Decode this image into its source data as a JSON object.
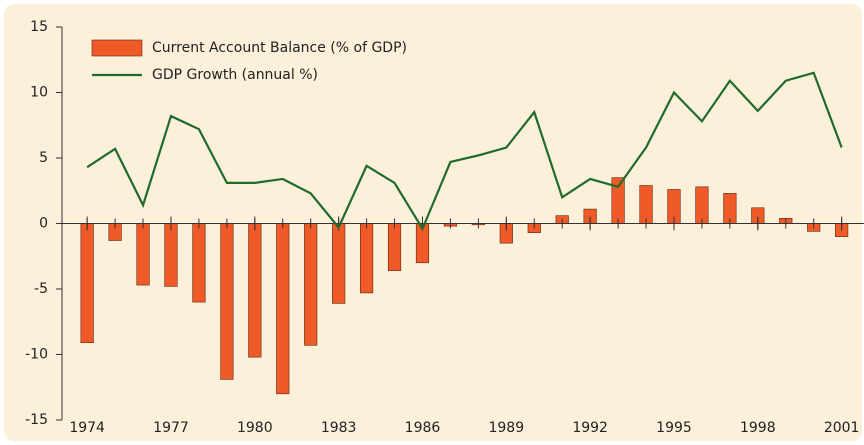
{
  "chart_data": {
    "type": "bar-line",
    "x": [
      1974,
      1975,
      1976,
      1977,
      1978,
      1979,
      1980,
      1981,
      1982,
      1983,
      1984,
      1985,
      1986,
      1987,
      1988,
      1989,
      1990,
      1991,
      1992,
      1993,
      1994,
      1995,
      1996,
      1997,
      1998,
      1999,
      2000,
      2001
    ],
    "series": [
      {
        "name": "Current Account Balance (% of GDP)",
        "type": "bar",
        "color": "#f05a28",
        "values": [
          -9.1,
          -1.3,
          -4.7,
          -4.8,
          -6.0,
          -11.9,
          -10.2,
          -13.0,
          -9.3,
          -6.1,
          -5.3,
          -3.6,
          -3.0,
          -0.2,
          -0.1,
          -1.5,
          -0.7,
          0.6,
          1.1,
          3.5,
          2.9,
          2.6,
          2.8,
          2.3,
          1.2,
          0.4,
          -0.6,
          -1.0
        ]
      },
      {
        "name": "GDP Growth (annual %)",
        "type": "line",
        "color": "#1e6b2a",
        "values": [
          4.3,
          5.7,
          1.4,
          8.2,
          7.2,
          3.1,
          3.1,
          3.4,
          2.3,
          -0.3,
          4.4,
          3.1,
          -0.4,
          4.7,
          5.2,
          5.8,
          8.5,
          2.0,
          3.4,
          2.8,
          5.8,
          10.0,
          7.8,
          10.9,
          8.6,
          10.9,
          11.5,
          5.8
        ]
      }
    ],
    "xlim": [
      1973.1,
      2001.8
    ],
    "xticks": [
      1974,
      1977,
      1980,
      1983,
      1986,
      1989,
      1992,
      1995,
      1998,
      2001
    ],
    "ylim": [
      -15,
      15
    ],
    "yticks": [
      -15,
      -10,
      -5,
      0,
      5,
      10,
      15
    ],
    "legend": "upper left"
  }
}
